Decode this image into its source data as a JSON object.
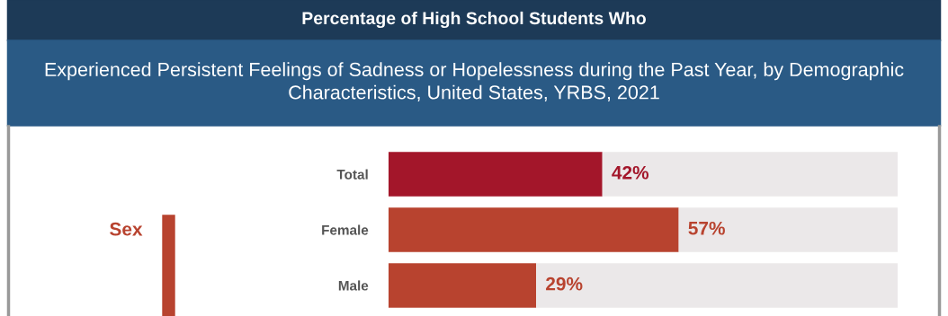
{
  "chart_data": {
    "type": "bar",
    "orientation": "horizontal",
    "stacked": true,
    "title": "Percentage of High School Students Who",
    "subtitle": "Experienced Persistent Feelings of Sadness or Hopelessness during the Past Year, by Demographic Characteristics, United States, YRBS, 2021",
    "categories": [
      "Total",
      "Female",
      "Male"
    ],
    "xlim": [
      0,
      100
    ],
    "series": [
      {
        "colors": [
          "#a3162a",
          "#b8432f",
          "#b8432f"
        ],
        "values": [
          42,
          57,
          29
        ],
        "value_labels": [
          "42%",
          "57%",
          "29%"
        ]
      },
      {
        "color": "#ebe8e9",
        "values": [
          58,
          43,
          71
        ]
      }
    ],
    "annotations": [
      "Sex"
    ],
    "grid": false,
    "legend": false
  }
}
